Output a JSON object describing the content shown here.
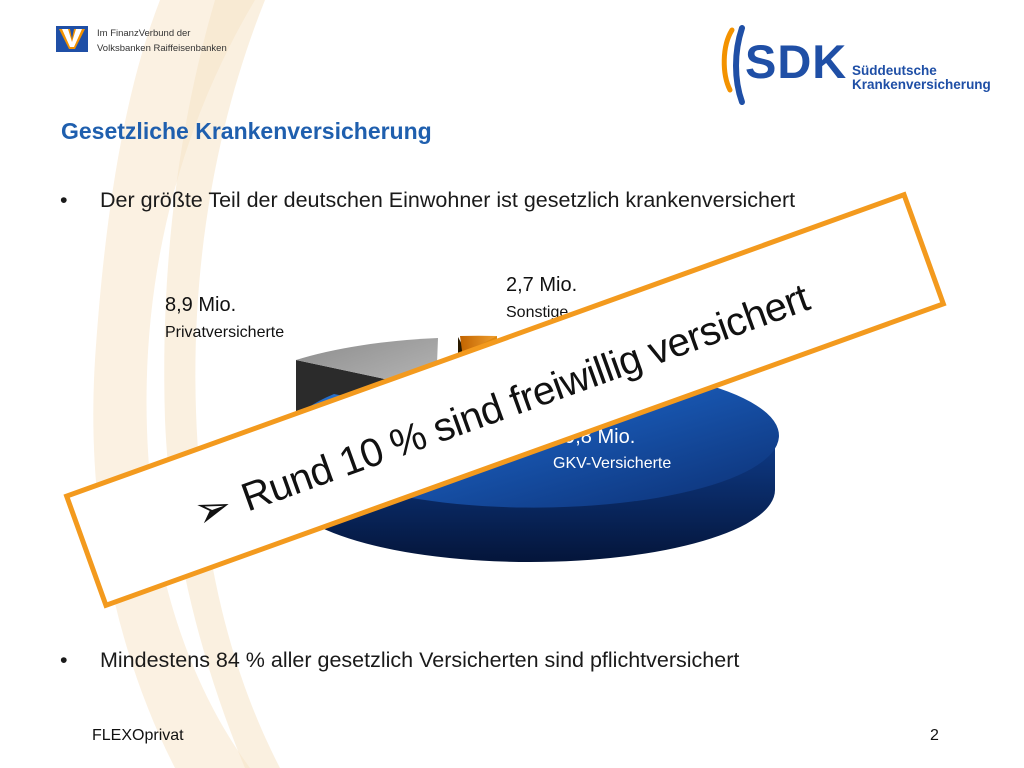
{
  "header": {
    "bank_line1": "Im FinanzVerbund der",
    "bank_line2": "Volksbanken Raiffeisenbanken",
    "sdk_name": "SDK",
    "sdk_sub1": "Süddeutsche",
    "sdk_sub2": "Krankenversicherung"
  },
  "slide": {
    "title": "Gesetzliche Krankenversicherung",
    "bullet1": "Der größte Teil der deutschen Einwohner ist gesetzlich krankenversichert",
    "bullet2": "Mindestens 84 % aller gesetzlich Versicherten sind pflichtversichert",
    "bullet_char": "•",
    "stamp_arrow": "➢",
    "stamp_text": "Rund 10 % sind freiwillig versichert"
  },
  "footer": {
    "left": "FLEXOprivat",
    "page": "2"
  },
  "colors": {
    "title": "#1f5fae",
    "gkv": "#1f5fb8",
    "private": "#9a9a9a",
    "other": "#e88a12",
    "stamp": "#f39a1e"
  },
  "chart_data": {
    "type": "pie",
    "style": "3d exploded",
    "slices": [
      {
        "label": "GKV-Versicherte",
        "value_label": "69,8 Mio.",
        "value": 69.8
      },
      {
        "label": "Privatversicherte",
        "value_label": "8,9 Mio.",
        "value": 8.9
      },
      {
        "label": "Sonstige",
        "value_label": "2,7 Mio.",
        "value": 2.7
      }
    ]
  }
}
